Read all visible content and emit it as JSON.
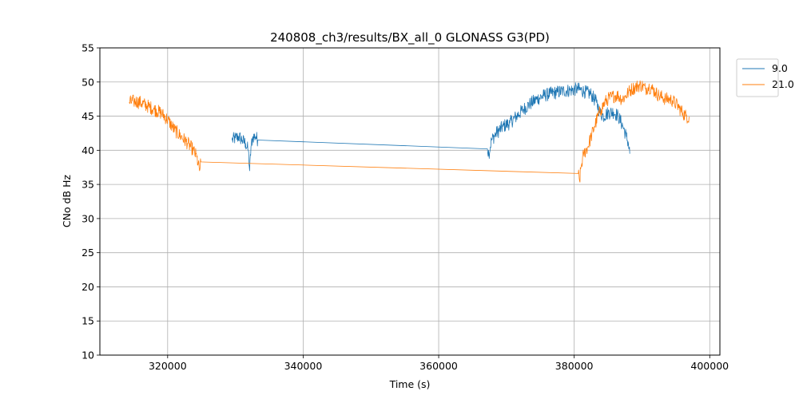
{
  "chart_data": {
    "type": "line",
    "title": "240808_ch3/results/BX_all_0 GLONASS G3(PD)",
    "xlabel": "Time (s)",
    "ylabel": "CNo dB Hz",
    "xlim": [
      310000,
      401500
    ],
    "ylim": [
      10,
      55
    ],
    "xticks": [
      320000,
      340000,
      360000,
      380000,
      400000
    ],
    "xtick_labels": [
      "320000",
      "340000",
      "360000",
      "380000",
      "400000"
    ],
    "yticks": [
      10,
      15,
      20,
      25,
      30,
      35,
      40,
      45,
      50,
      55
    ],
    "ytick_labels": [
      "10",
      "15",
      "20",
      "25",
      "30",
      "35",
      "40",
      "45",
      "50",
      "55"
    ],
    "grid": true,
    "legend_position": "outside-top-right",
    "series": [
      {
        "name": "9.0",
        "color": "#1f77b4",
        "noise": 1.0,
        "x": [
          329500,
          330000,
          330500,
          331000,
          331500,
          331900,
          332100,
          332300,
          332600,
          333000,
          333300,
          367200,
          367400,
          367800,
          368500,
          369500,
          370500,
          371500,
          372500,
          373500,
          374500,
          375500,
          376500,
          377500,
          378500,
          379500,
          380500,
          381500,
          382500,
          383300,
          383800,
          384300,
          385000,
          385800,
          386500,
          387200,
          387700,
          388000,
          388200
        ],
        "y": [
          41.5,
          41.8,
          42.0,
          41.5,
          41.0,
          40.0,
          37.0,
          40.5,
          42.0,
          42.0,
          41.5,
          40.2,
          39.5,
          41.5,
          42.5,
          43.5,
          44.0,
          45.0,
          46.0,
          46.8,
          47.5,
          48.0,
          48.3,
          48.5,
          48.7,
          48.8,
          49.0,
          48.6,
          48.2,
          47.0,
          45.5,
          45.0,
          45.5,
          45.6,
          45.0,
          43.5,
          42.0,
          41.0,
          39.5
        ]
      },
      {
        "name": "21.0",
        "color": "#ff7f0e",
        "noise": 1.0,
        "x": [
          314300,
          315000,
          316000,
          317000,
          318000,
          319000,
          320000,
          321000,
          322000,
          323000,
          323800,
          324300,
          324700,
          324900,
          380600,
          380800,
          381000,
          381400,
          382000,
          382500,
          383000,
          383500,
          384000,
          384500,
          385000,
          385500,
          386000,
          386500,
          387000,
          387500,
          388000,
          388500,
          389000,
          389500,
          390000,
          390500,
          391000,
          391500,
          392000,
          392500,
          393000,
          393500,
          394000,
          394500,
          395000,
          395500,
          396000,
          396500,
          397000
        ],
        "y": [
          47.0,
          47.2,
          47.0,
          46.5,
          46.0,
          45.5,
          44.5,
          43.0,
          42.0,
          41.0,
          40.0,
          39.0,
          37.0,
          38.3,
          36.6,
          35.5,
          37.5,
          39.5,
          40.5,
          42.0,
          43.5,
          45.0,
          46.0,
          47.0,
          47.5,
          47.8,
          48.0,
          48.0,
          47.5,
          47.8,
          48.5,
          49.0,
          49.2,
          49.5,
          49.5,
          49.0,
          49.3,
          49.0,
          48.5,
          48.0,
          47.8,
          47.5,
          47.5,
          47.3,
          46.8,
          46.2,
          45.5,
          45.0,
          44.8
        ]
      }
    ]
  }
}
